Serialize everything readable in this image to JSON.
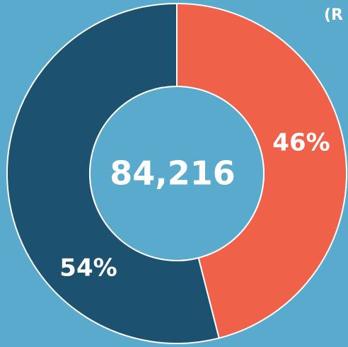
{
  "chart_data": {
    "type": "donut",
    "values": [
      46,
      54
    ],
    "value_labels": [
      "46%",
      "54%"
    ],
    "colors": [
      "#f06149",
      "#1c526f"
    ],
    "center_label": "84,216",
    "annotation": "(R"
  }
}
